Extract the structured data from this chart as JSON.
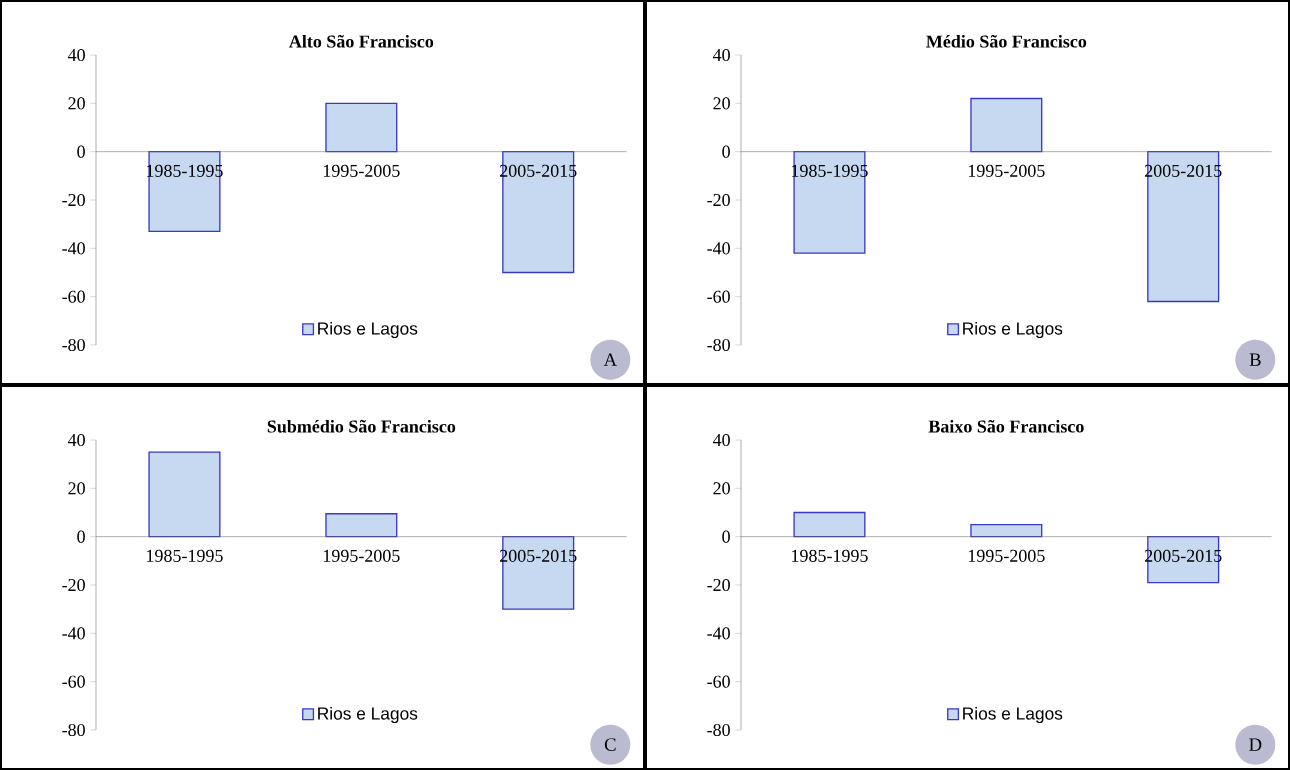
{
  "chart_data": [
    {
      "type": "bar",
      "title": "Alto São Francisco",
      "categories": [
        "1985-1995",
        "1995-2005",
        "2005-2015"
      ],
      "series": [
        {
          "name": "Rios e Lagos",
          "color": "#c6d9f1",
          "values": [
            -33,
            20,
            -50
          ]
        }
      ],
      "ylim": [
        -80,
        40
      ],
      "yticks": [
        -80,
        -60,
        -40,
        -20,
        0,
        20,
        40
      ],
      "legend": "bottom",
      "annotations": [
        "A"
      ]
    },
    {
      "type": "bar",
      "title": "Médio São Francisco",
      "categories": [
        "1985-1995",
        "1995-2005",
        "2005-2015"
      ],
      "series": [
        {
          "name": "Rios e Lagos",
          "color": "#c6d9f1",
          "values": [
            -42,
            22,
            -62
          ]
        }
      ],
      "ylim": [
        -80,
        40
      ],
      "yticks": [
        -80,
        -60,
        -40,
        -20,
        0,
        20,
        40
      ],
      "legend": "bottom",
      "annotations": [
        "B"
      ]
    },
    {
      "type": "bar",
      "title": "Submédio São Francisco",
      "categories": [
        "1985-1995",
        "1995-2005",
        "2005-2015"
      ],
      "series": [
        {
          "name": "Rios e Lagos",
          "color": "#c6d9f1",
          "values": [
            35,
            9.5,
            -30
          ]
        }
      ],
      "ylim": [
        -80,
        40
      ],
      "yticks": [
        -80,
        -60,
        -40,
        -20,
        0,
        20,
        40
      ],
      "legend": "bottom",
      "annotations": [
        "C"
      ]
    },
    {
      "type": "bar",
      "title": "Baixo São Francisco",
      "categories": [
        "1985-1995",
        "1995-2005",
        "2005-2015"
      ],
      "series": [
        {
          "name": "Rios e Lagos",
          "color": "#c6d9f1",
          "values": [
            10,
            5,
            -19
          ]
        }
      ],
      "ylim": [
        -80,
        40
      ],
      "yticks": [
        -80,
        -60,
        -40,
        -20,
        0,
        20,
        40
      ],
      "legend": "bottom",
      "annotations": [
        "D"
      ]
    }
  ]
}
